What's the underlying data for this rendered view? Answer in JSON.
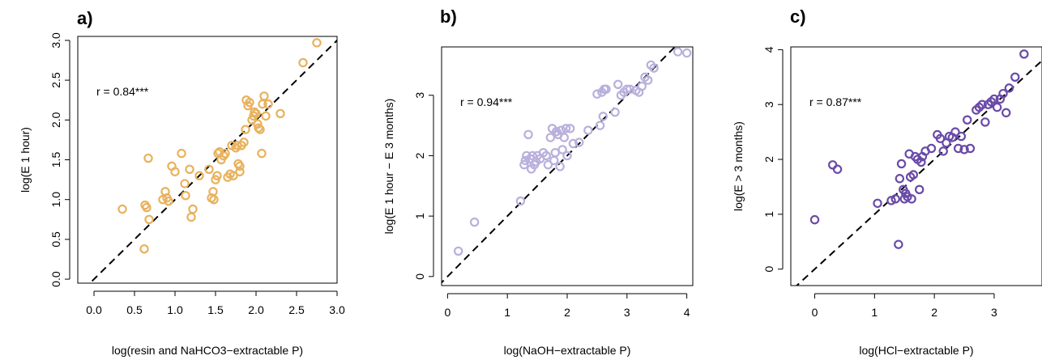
{
  "chart_data": [
    {
      "type": "scatter",
      "panel_label": "a)",
      "xlabel": "log(resin and NaHCO3−extractable P)",
      "ylabel": "log(E 1 hour)",
      "annotation": "r = 0.84***",
      "xlim": [
        -0.2,
        3.0
      ],
      "ylim": [
        -0.05,
        3.05
      ],
      "xticks": [
        0.0,
        0.5,
        1.0,
        1.5,
        2.0,
        2.5,
        3.0
      ],
      "xtick_labels": [
        "0.0",
        "0.5",
        "1.0",
        "1.5",
        "2.0",
        "2.5",
        "3.0"
      ],
      "yticks": [
        0.0,
        0.5,
        1.0,
        1.5,
        2.0,
        2.5,
        3.0
      ],
      "ytick_labels": [
        "0.0",
        "0.5",
        "1.0",
        "1.5",
        "2.0",
        "2.5",
        "3.0"
      ],
      "color": "#E8B25E",
      "reference_line": "1:1",
      "grid": false,
      "x": [
        0.35,
        0.62,
        0.63,
        0.65,
        0.67,
        0.68,
        0.85,
        0.88,
        0.9,
        0.92,
        0.96,
        1.0,
        1.08,
        1.12,
        1.13,
        1.18,
        1.2,
        1.22,
        1.3,
        1.42,
        1.45,
        1.47,
        1.48,
        1.5,
        1.52,
        1.53,
        1.55,
        1.57,
        1.6,
        1.62,
        1.65,
        1.68,
        1.7,
        1.72,
        1.75,
        1.77,
        1.78,
        1.8,
        1.8,
        1.82,
        1.85,
        1.87,
        1.88,
        1.9,
        1.92,
        1.95,
        1.97,
        1.98,
        2.0,
        2.02,
        2.03,
        2.05,
        2.07,
        2.08,
        2.1,
        2.12,
        2.15,
        2.3,
        2.58,
        2.75
      ],
      "y": [
        0.88,
        0.38,
        0.93,
        0.9,
        1.52,
        0.75,
        1.0,
        1.1,
        1.02,
        0.98,
        1.42,
        1.35,
        1.58,
        1.2,
        1.05,
        1.38,
        0.78,
        0.88,
        1.3,
        1.38,
        1.02,
        1.1,
        1.0,
        1.25,
        1.3,
        1.58,
        1.6,
        1.5,
        1.55,
        1.58,
        1.28,
        1.32,
        1.68,
        1.3,
        1.65,
        1.68,
        1.45,
        1.35,
        1.42,
        1.68,
        1.72,
        1.88,
        2.25,
        2.18,
        2.22,
        2.0,
        2.05,
        2.1,
        2.08,
        1.95,
        1.9,
        1.88,
        1.58,
        2.2,
        2.3,
        2.05,
        2.2,
        2.08,
        2.72,
        2.97
      ]
    },
    {
      "type": "scatter",
      "panel_label": "b)",
      "xlabel": "log(NaOH−extractable P)",
      "ylabel": "log(E 1 hour − E 3 months)",
      "annotation": "r = 0.94***",
      "xlim": [
        -0.1,
        4.1
      ],
      "ylim": [
        -0.15,
        3.8
      ],
      "xticks": [
        0,
        1,
        2,
        3,
        4
      ],
      "xtick_labels": [
        "0",
        "1",
        "2",
        "3",
        "4"
      ],
      "yticks": [
        0,
        1,
        2,
        3
      ],
      "ytick_labels": [
        "0",
        "1",
        "2",
        "3"
      ],
      "color": "#B9B0DC",
      "reference_line": "1:1",
      "grid": false,
      "x": [
        0.18,
        0.45,
        1.22,
        1.28,
        1.3,
        1.32,
        1.35,
        1.38,
        1.4,
        1.42,
        1.45,
        1.48,
        1.5,
        1.55,
        1.6,
        1.65,
        1.68,
        1.72,
        1.75,
        1.78,
        1.8,
        1.82,
        1.85,
        1.88,
        1.9,
        1.92,
        1.95,
        1.98,
        2.0,
        2.05,
        2.1,
        2.2,
        2.35,
        2.5,
        2.55,
        2.58,
        2.6,
        2.62,
        2.65,
        2.8,
        2.85,
        2.9,
        2.95,
        3.0,
        3.05,
        3.15,
        3.2,
        3.25,
        3.3,
        3.35,
        3.4,
        3.45,
        3.85,
        4.0
      ],
      "y": [
        0.42,
        0.9,
        1.25,
        1.85,
        1.92,
        2.0,
        2.35,
        1.95,
        1.78,
        2.0,
        1.85,
        1.9,
        2.0,
        1.95,
        2.05,
        2.0,
        1.85,
        2.3,
        2.45,
        1.92,
        2.05,
        2.4,
        2.35,
        1.82,
        2.42,
        2.1,
        2.3,
        2.45,
        2.0,
        2.45,
        2.2,
        2.22,
        2.42,
        3.02,
        2.5,
        3.05,
        2.65,
        3.1,
        3.1,
        2.72,
        3.18,
        3.0,
        3.05,
        3.1,
        3.1,
        3.08,
        3.05,
        3.15,
        3.3,
        3.25,
        3.5,
        3.45,
        3.72,
        3.7
      ]
    },
    {
      "type": "scatter",
      "panel_label": "c)",
      "xlabel": "log(HCl−extractable P)",
      "ylabel": "log(E > 3 months)",
      "annotation": "r = 0.87***",
      "xlim": [
        -0.4,
        3.8
      ],
      "ylim": [
        -0.3,
        4.05
      ],
      "xticks": [
        0,
        1,
        2,
        3
      ],
      "xtick_labels": [
        "0",
        "1",
        "2",
        "3"
      ],
      "yticks": [
        0,
        1,
        2,
        3,
        4
      ],
      "ytick_labels": [
        "0",
        "1",
        "2",
        "3",
        "4"
      ],
      "color": "#6A4BA8",
      "reference_line": "1:1",
      "grid": false,
      "x": [
        0.0,
        0.3,
        0.38,
        1.05,
        1.28,
        1.35,
        1.4,
        1.42,
        1.45,
        1.48,
        1.5,
        1.52,
        1.55,
        1.58,
        1.6,
        1.62,
        1.65,
        1.68,
        1.72,
        1.75,
        1.78,
        1.8,
        1.85,
        1.95,
        2.05,
        2.1,
        2.15,
        2.2,
        2.25,
        2.3,
        2.35,
        2.4,
        2.45,
        2.5,
        2.55,
        2.6,
        2.7,
        2.75,
        2.8,
        2.85,
        2.9,
        2.95,
        3.0,
        3.05,
        3.1,
        3.15,
        3.2,
        3.25,
        3.35,
        3.5
      ],
      "y": [
        0.9,
        1.9,
        1.82,
        1.2,
        1.25,
        1.28,
        0.45,
        1.65,
        1.92,
        1.45,
        1.28,
        1.38,
        1.32,
        2.1,
        1.68,
        1.28,
        1.72,
        2.05,
        2.0,
        1.45,
        1.95,
        2.05,
        2.15,
        2.2,
        2.45,
        2.38,
        2.15,
        2.3,
        2.42,
        2.4,
        2.5,
        2.2,
        2.42,
        2.18,
        2.72,
        2.2,
        2.9,
        2.95,
        3.0,
        2.68,
        3.0,
        3.05,
        3.1,
        2.95,
        3.1,
        3.2,
        2.85,
        3.3,
        3.5,
        3.92
      ]
    }
  ]
}
